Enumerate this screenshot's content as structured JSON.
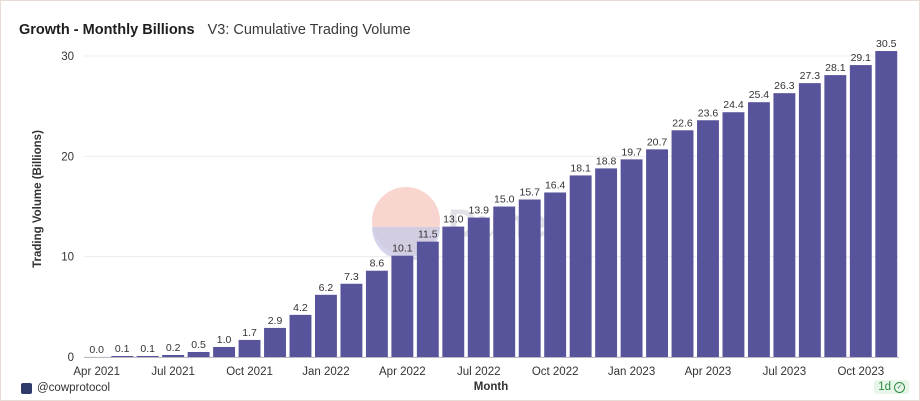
{
  "header": {
    "title": "Growth - Monthly Billions",
    "subtitle": "V3: Cumulative Trading Volume"
  },
  "footer": {
    "account": "@cowprotocol",
    "refresh": "1d"
  },
  "watermark": {
    "text": "Dune"
  },
  "colors": {
    "bar": "#58549b",
    "grid": "#ececf2",
    "axis_text": "#333333"
  },
  "chart_data": {
    "type": "bar",
    "xlabel": "Month",
    "ylabel": "Trading Volume (Billions)",
    "ylim": [
      0,
      31.5
    ],
    "yticks": [
      0,
      10,
      20,
      30
    ],
    "grid": true,
    "categories": [
      "Apr 2021",
      "May 2021",
      "Jun 2021",
      "Jul 2021",
      "Aug 2021",
      "Sep 2021",
      "Oct 2021",
      "Nov 2021",
      "Dec 2021",
      "Jan 2022",
      "Feb 2022",
      "Mar 2022",
      "Apr 2022",
      "May 2022",
      "Jun 2022",
      "Jul 2022",
      "Aug 2022",
      "Sep 2022",
      "Oct 2022",
      "Nov 2022",
      "Dec 2022",
      "Jan 2023",
      "Feb 2023",
      "Mar 2023",
      "Apr 2023",
      "May 2023",
      "Jun 2023",
      "Jul 2023",
      "Aug 2023",
      "Sep 2023",
      "Oct 2023",
      "Nov 2023"
    ],
    "values": [
      0.0,
      0.1,
      0.1,
      0.2,
      0.5,
      1.0,
      1.7,
      2.9,
      4.2,
      6.2,
      7.3,
      8.6,
      10.1,
      11.5,
      13.0,
      13.9,
      15.0,
      15.7,
      16.4,
      18.1,
      18.8,
      19.7,
      20.7,
      22.6,
      23.6,
      24.4,
      25.4,
      26.3,
      27.3,
      28.1,
      29.1,
      30.5
    ],
    "value_labels": [
      "0.0",
      "0.1",
      "0.1",
      "0.2",
      "0.5",
      "1.0",
      "1.7",
      "2.9",
      "4.2",
      "6.2",
      "7.3",
      "8.6",
      "10.1",
      "11.5",
      "13.0",
      "13.9",
      "15.0",
      "15.7",
      "16.4",
      "18.1",
      "18.8",
      "19.7",
      "20.7",
      "22.6",
      "23.6",
      "24.4",
      "25.4",
      "26.3",
      "27.3",
      "28.1",
      "29.1",
      "30.5"
    ],
    "xtick_labels": [
      {
        "index": 0,
        "label": "Apr 2021"
      },
      {
        "index": 3,
        "label": "Jul 2021"
      },
      {
        "index": 6,
        "label": "Oct 2021"
      },
      {
        "index": 9,
        "label": "Jan 2022"
      },
      {
        "index": 12,
        "label": "Apr 2022"
      },
      {
        "index": 15,
        "label": "Jul 2022"
      },
      {
        "index": 18,
        "label": "Oct 2022"
      },
      {
        "index": 21,
        "label": "Jan 2023"
      },
      {
        "index": 24,
        "label": "Apr 2023"
      },
      {
        "index": 27,
        "label": "Jul 2023"
      },
      {
        "index": 30,
        "label": "Oct 2023"
      }
    ]
  }
}
